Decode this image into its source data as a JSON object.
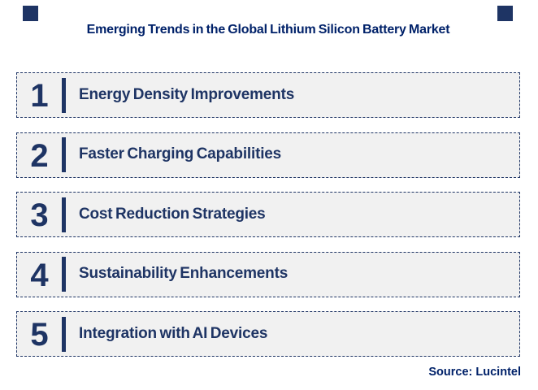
{
  "header": {
    "title": "Emerging Trends in the Global Lithium Silicon Battery Market"
  },
  "trends": [
    {
      "number": "1",
      "label": "Energy Density Improvements"
    },
    {
      "number": "2",
      "label": "Faster Charging Capabilities"
    },
    {
      "number": "3",
      "label": "Cost Reduction Strategies"
    },
    {
      "number": "4",
      "label": "Sustainability Enhancements"
    },
    {
      "number": "5",
      "label": "Integration with AI Devices"
    }
  ],
  "footer": {
    "source": "Source: Lucintel"
  },
  "colors": {
    "navy": "#1e3464",
    "title_navy": "#002169",
    "row_fill": "#f1f1f1"
  }
}
